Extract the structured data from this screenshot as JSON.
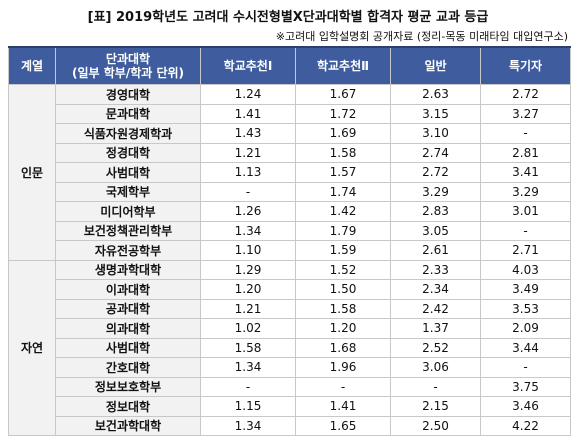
{
  "header": {
    "title": "[표] 2019학년도 고려대 수시전형별X단과대학별 합격자 평균 교과 등급",
    "subtitle": "※고려대 입학설명회 공개자료 (정리-목동 미래타임 대입연구소)"
  },
  "table": {
    "columns": [
      "계열",
      [
        "단과대학",
        "(일부 학부/학과 단위)"
      ],
      "학교추천Ⅰ",
      "학교추천Ⅱ",
      "일반",
      "특기자"
    ],
    "groups": [
      {
        "name": "인문",
        "rows": [
          {
            "dept": "경영대학",
            "values": [
              "1.24",
              "1.67",
              "2.63",
              "2.72"
            ]
          },
          {
            "dept": "문과대학",
            "values": [
              "1.41",
              "1.72",
              "3.15",
              "3.27"
            ]
          },
          {
            "dept": "식품자원경제학과",
            "values": [
              "1.43",
              "1.69",
              "3.10",
              "-"
            ]
          },
          {
            "dept": "정경대학",
            "values": [
              "1.21",
              "1.58",
              "2.74",
              "2.81"
            ]
          },
          {
            "dept": "사범대학",
            "values": [
              "1.13",
              "1.57",
              "2.72",
              "3.41"
            ]
          },
          {
            "dept": "국제학부",
            "values": [
              "-",
              "1.74",
              "3.29",
              "3.29"
            ]
          },
          {
            "dept": "미디어학부",
            "values": [
              "1.26",
              "1.42",
              "2.83",
              "3.01"
            ]
          },
          {
            "dept": "보건정책관리학부",
            "values": [
              "1.34",
              "1.79",
              "3.05",
              "-"
            ]
          },
          {
            "dept": "자유전공학부",
            "values": [
              "1.10",
              "1.59",
              "2.61",
              "2.71"
            ]
          }
        ]
      },
      {
        "name": "자연",
        "rows": [
          {
            "dept": "생명과학대학",
            "values": [
              "1.29",
              "1.52",
              "2.33",
              "4.03"
            ]
          },
          {
            "dept": "이과대학",
            "values": [
              "1.20",
              "1.50",
              "2.34",
              "3.49"
            ]
          },
          {
            "dept": "공과대학",
            "values": [
              "1.21",
              "1.58",
              "2.42",
              "3.53"
            ]
          },
          {
            "dept": "의과대학",
            "values": [
              "1.02",
              "1.20",
              "1.37",
              "2.09"
            ]
          },
          {
            "dept": "사범대학",
            "values": [
              "1.58",
              "1.68",
              "2.52",
              "3.44"
            ]
          },
          {
            "dept": "간호대학",
            "values": [
              "1.34",
              "1.96",
              "3.06",
              "-"
            ]
          },
          {
            "dept": "정보보호학부",
            "values": [
              "-",
              "-",
              "-",
              "3.75"
            ]
          },
          {
            "dept": "정보대학",
            "values": [
              "1.15",
              "1.41",
              "2.15",
              "3.46"
            ]
          },
          {
            "dept": "보건과학대학",
            "values": [
              "1.34",
              "1.65",
              "2.50",
              "4.22"
            ]
          }
        ]
      }
    ]
  }
}
